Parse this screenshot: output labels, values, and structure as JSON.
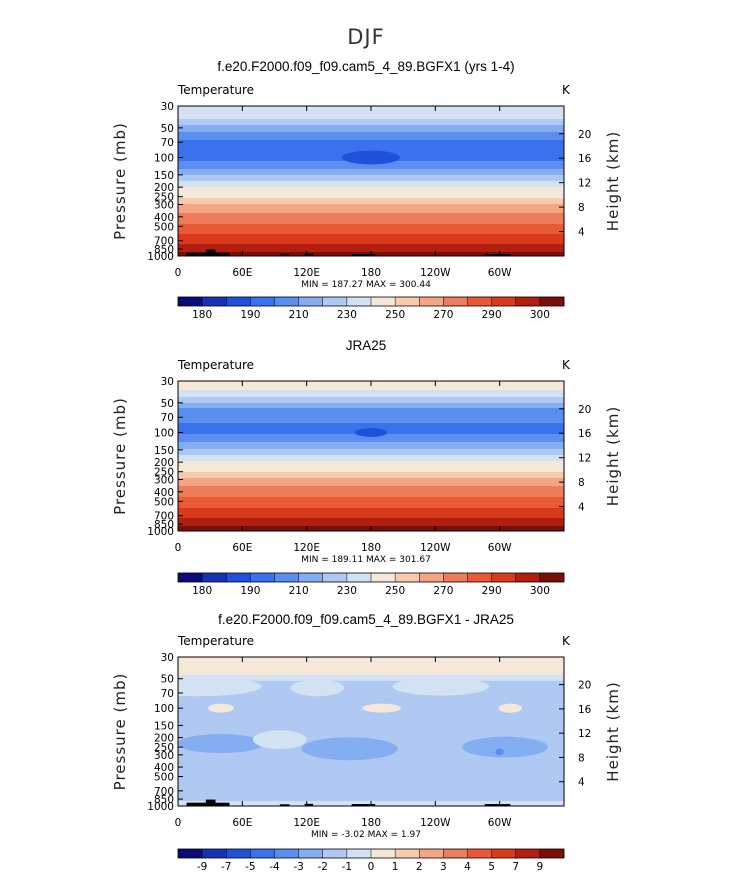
{
  "figure_title": "DJF",
  "chart_data": [
    {
      "type": "heatmap",
      "title": "f.e20.F2000.f09_f09.cam5_4_89.BGFX1 (yrs 1-4)",
      "left_label": "Temperature",
      "right_label": "K",
      "ylabel": "Pressure (mb)",
      "ylabel_right": "Height (km)",
      "x_ticks": [
        "0",
        "60E",
        "120E",
        "180",
        "120W",
        "60W"
      ],
      "x_values": [
        0,
        60,
        120,
        180,
        240,
        300
      ],
      "xlim": [
        0,
        360
      ],
      "y_ticks": [
        "30",
        "50",
        "70",
        "100",
        "150",
        "200",
        "250",
        "300",
        "400",
        "500",
        "700",
        "850",
        "1000"
      ],
      "y_values": [
        30,
        50,
        70,
        100,
        150,
        200,
        250,
        300,
        400,
        500,
        700,
        850,
        1000
      ],
      "ylim": [
        1000,
        30
      ],
      "height_ticks": [
        "20",
        "16",
        "12",
        "8",
        "4"
      ],
      "height_values": [
        20,
        16,
        12,
        8,
        4
      ],
      "min_max_text": "MIN = 187.27   MAX = 300.44",
      "min": 187.27,
      "max": 300.44,
      "colorbar": {
        "labels": [
          "180",
          "190",
          "210",
          "230",
          "250",
          "270",
          "290",
          "300"
        ],
        "colors": [
          "#0b0b7a",
          "#1632b4",
          "#1f52d8",
          "#3a72ee",
          "#5a8ff0",
          "#85aef2",
          "#afc9f2",
          "#d2e2f2",
          "#f6e8d8",
          "#f7c9ad",
          "#f3a584",
          "#ed7c5a",
          "#e85a35",
          "#d83a1b",
          "#b01f12",
          "#7a0e08"
        ]
      },
      "bands": [
        {
          "p": 30,
          "v": 220
        },
        {
          "p": 40,
          "v": 216
        },
        {
          "p": 50,
          "v": 208
        },
        {
          "p": 60,
          "v": 202
        },
        {
          "p": 70,
          "v": 199
        },
        {
          "p": 100,
          "v": 198
        },
        {
          "p": 130,
          "v": 205
        },
        {
          "p": 160,
          "v": 212
        },
        {
          "p": 200,
          "v": 220
        },
        {
          "p": 250,
          "v": 228
        },
        {
          "p": 300,
          "v": 240
        },
        {
          "p": 350,
          "v": 248
        },
        {
          "p": 400,
          "v": 254
        },
        {
          "p": 500,
          "v": 262
        },
        {
          "p": 600,
          "v": 270
        },
        {
          "p": 700,
          "v": 276
        },
        {
          "p": 850,
          "v": 286
        },
        {
          "p": 1000,
          "v": 296
        }
      ],
      "blobs": [
        {
          "lon": 180,
          "p": 100,
          "lon_w": 27,
          "p_w": 12,
          "v": 192
        }
      ],
      "terrain": [
        {
          "lon0": 8,
          "lon1": 48,
          "p": 925
        },
        {
          "lon0": 26,
          "lon1": 35,
          "p": 860
        },
        {
          "lon0": 95,
          "lon1": 104,
          "p": 960
        },
        {
          "lon0": 118,
          "lon1": 126,
          "p": 950
        },
        {
          "lon0": 162,
          "lon1": 184,
          "p": 955
        },
        {
          "lon0": 286,
          "lon1": 310,
          "p": 955
        }
      ]
    },
    {
      "type": "heatmap",
      "title": "JRA25",
      "left_label": "Temperature",
      "right_label": "K",
      "ylabel": "Pressure (mb)",
      "ylabel_right": "Height (km)",
      "x_ticks": [
        "0",
        "60E",
        "120E",
        "180",
        "120W",
        "60W"
      ],
      "x_values": [
        0,
        60,
        120,
        180,
        240,
        300
      ],
      "xlim": [
        0,
        360
      ],
      "y_ticks": [
        "30",
        "50",
        "70",
        "100",
        "150",
        "200",
        "250",
        "300",
        "400",
        "500",
        "700",
        "850",
        "1000"
      ],
      "y_values": [
        30,
        50,
        70,
        100,
        150,
        200,
        250,
        300,
        400,
        500,
        700,
        850,
        1000
      ],
      "ylim": [
        1000,
        30
      ],
      "height_ticks": [
        "20",
        "16",
        "12",
        "8",
        "4"
      ],
      "height_values": [
        20,
        16,
        12,
        8,
        4
      ],
      "min_max_text": "MIN = 189.11   MAX = 301.67",
      "min": 189.11,
      "max": 301.67,
      "colorbar": {
        "labels": [
          "180",
          "190",
          "210",
          "230",
          "250",
          "270",
          "290",
          "300"
        ],
        "colors": [
          "#0b0b7a",
          "#1632b4",
          "#1f52d8",
          "#3a72ee",
          "#5a8ff0",
          "#85aef2",
          "#afc9f2",
          "#d2e2f2",
          "#f6e8d8",
          "#f7c9ad",
          "#f3a584",
          "#ed7c5a",
          "#e85a35",
          "#d83a1b",
          "#b01f12",
          "#7a0e08"
        ]
      },
      "bands": [
        {
          "p": 30,
          "v": 230
        },
        {
          "p": 35,
          "v": 222
        },
        {
          "p": 45,
          "v": 214
        },
        {
          "p": 55,
          "v": 206
        },
        {
          "p": 65,
          "v": 201
        },
        {
          "p": 100,
          "v": 199
        },
        {
          "p": 130,
          "v": 206
        },
        {
          "p": 160,
          "v": 213
        },
        {
          "p": 200,
          "v": 221
        },
        {
          "p": 250,
          "v": 230
        },
        {
          "p": 300,
          "v": 242
        },
        {
          "p": 350,
          "v": 250
        },
        {
          "p": 400,
          "v": 256
        },
        {
          "p": 500,
          "v": 264
        },
        {
          "p": 600,
          "v": 271
        },
        {
          "p": 700,
          "v": 277
        },
        {
          "p": 850,
          "v": 287
        },
        {
          "p": 1000,
          "v": 297
        }
      ],
      "blobs": [
        {
          "lon": 180,
          "p": 100,
          "lon_w": 15,
          "p_w": 6,
          "v": 192
        }
      ],
      "terrain": []
    },
    {
      "type": "heatmap",
      "title": "f.e20.F2000.f09_f09.cam5_4_89.BGFX1 - JRA25",
      "left_label": "Temperature",
      "right_label": "K",
      "ylabel": "Pressure (mb)",
      "ylabel_right": "Height (km)",
      "x_ticks": [
        "0",
        "60E",
        "120E",
        "180",
        "120W",
        "60W"
      ],
      "x_values": [
        0,
        60,
        120,
        180,
        240,
        300
      ],
      "xlim": [
        0,
        360
      ],
      "y_ticks": [
        "30",
        "50",
        "70",
        "100",
        "150",
        "200",
        "250",
        "300",
        "400",
        "500",
        "700",
        "850",
        "1000"
      ],
      "y_values": [
        30,
        50,
        70,
        100,
        150,
        200,
        250,
        300,
        400,
        500,
        700,
        850,
        1000
      ],
      "ylim": [
        1000,
        30
      ],
      "height_ticks": [
        "20",
        "16",
        "12",
        "8",
        "4"
      ],
      "height_values": [
        20,
        16,
        12,
        8,
        4
      ],
      "min_max_text": "MIN =  -3.02   MAX =    1.97",
      "min": -3.02,
      "max": 1.97,
      "colorbar": {
        "labels": [
          "-9",
          "-7",
          "-5",
          "-4",
          "-3",
          "-2",
          "-1",
          "0",
          "1",
          "2",
          "3",
          "4",
          "5",
          "7",
          "9"
        ],
        "colors": [
          "#0b0b7a",
          "#1632b4",
          "#1f52d8",
          "#3a72ee",
          "#5a8ff0",
          "#85aef2",
          "#afc9f2",
          "#d2e2f2",
          "#f6e8d8",
          "#f7c9ad",
          "#f3a584",
          "#ed7c5a",
          "#e85a35",
          "#d83a1b",
          "#b01f12",
          "#7a0e08"
        ]
      },
      "diff_levels": [
        -9,
        -7,
        -5,
        -4,
        -3,
        -2,
        -1,
        0,
        1,
        2,
        3,
        4,
        5,
        7,
        9
      ],
      "bands": [
        {
          "p": 30,
          "v": 0.6
        },
        {
          "p": 45,
          "v": 0.2
        },
        {
          "p": 55,
          "v": -1.4
        },
        {
          "p": 100,
          "v": -1.6
        },
        {
          "p": 150,
          "v": -1.3
        },
        {
          "p": 200,
          "v": -1.5
        },
        {
          "p": 400,
          "v": -1.5
        },
        {
          "p": 500,
          "v": -1.3
        },
        {
          "p": 700,
          "v": -1.4
        },
        {
          "p": 850,
          "v": -1.2
        },
        {
          "p": 1000,
          "v": -0.6
        }
      ],
      "blobs": [
        {
          "lon": 18,
          "p": 60,
          "lon_w": 60,
          "p_w": 12,
          "v": -0.5
        },
        {
          "lon": 130,
          "p": 62,
          "lon_w": 25,
          "p_w": 10,
          "v": -0.5
        },
        {
          "lon": 245,
          "p": 60,
          "lon_w": 45,
          "p_w": 11,
          "v": -0.5
        },
        {
          "lon": 40,
          "p": 100,
          "lon_w": 12,
          "p_w": 6,
          "v": 0.5
        },
        {
          "lon": 190,
          "p": 100,
          "lon_w": 18,
          "p_w": 6,
          "v": 0.5
        },
        {
          "lon": 310,
          "p": 100,
          "lon_w": 11,
          "p_w": 6,
          "v": 0.5
        },
        {
          "lon": 40,
          "p": 230,
          "lon_w": 40,
          "p_w": 45,
          "v": -2.5
        },
        {
          "lon": 160,
          "p": 260,
          "lon_w": 45,
          "p_w": 65,
          "v": -2.5
        },
        {
          "lon": 305,
          "p": 250,
          "lon_w": 40,
          "p_w": 55,
          "v": -2.5
        },
        {
          "lon": 95,
          "p": 210,
          "lon_w": 25,
          "p_w": 40,
          "v": -0.6
        },
        {
          "lon": 300,
          "p": 280,
          "lon_w": 4,
          "p_w": 10,
          "v": -3.5
        }
      ],
      "terrain": [
        {
          "lon0": 8,
          "lon1": 48,
          "p": 925
        },
        {
          "lon0": 26,
          "lon1": 35,
          "p": 860
        },
        {
          "lon0": 95,
          "lon1": 104,
          "p": 960
        },
        {
          "lon0": 118,
          "lon1": 126,
          "p": 950
        },
        {
          "lon0": 162,
          "lon1": 184,
          "p": 955
        },
        {
          "lon0": 286,
          "lon1": 310,
          "p": 955
        }
      ]
    }
  ]
}
